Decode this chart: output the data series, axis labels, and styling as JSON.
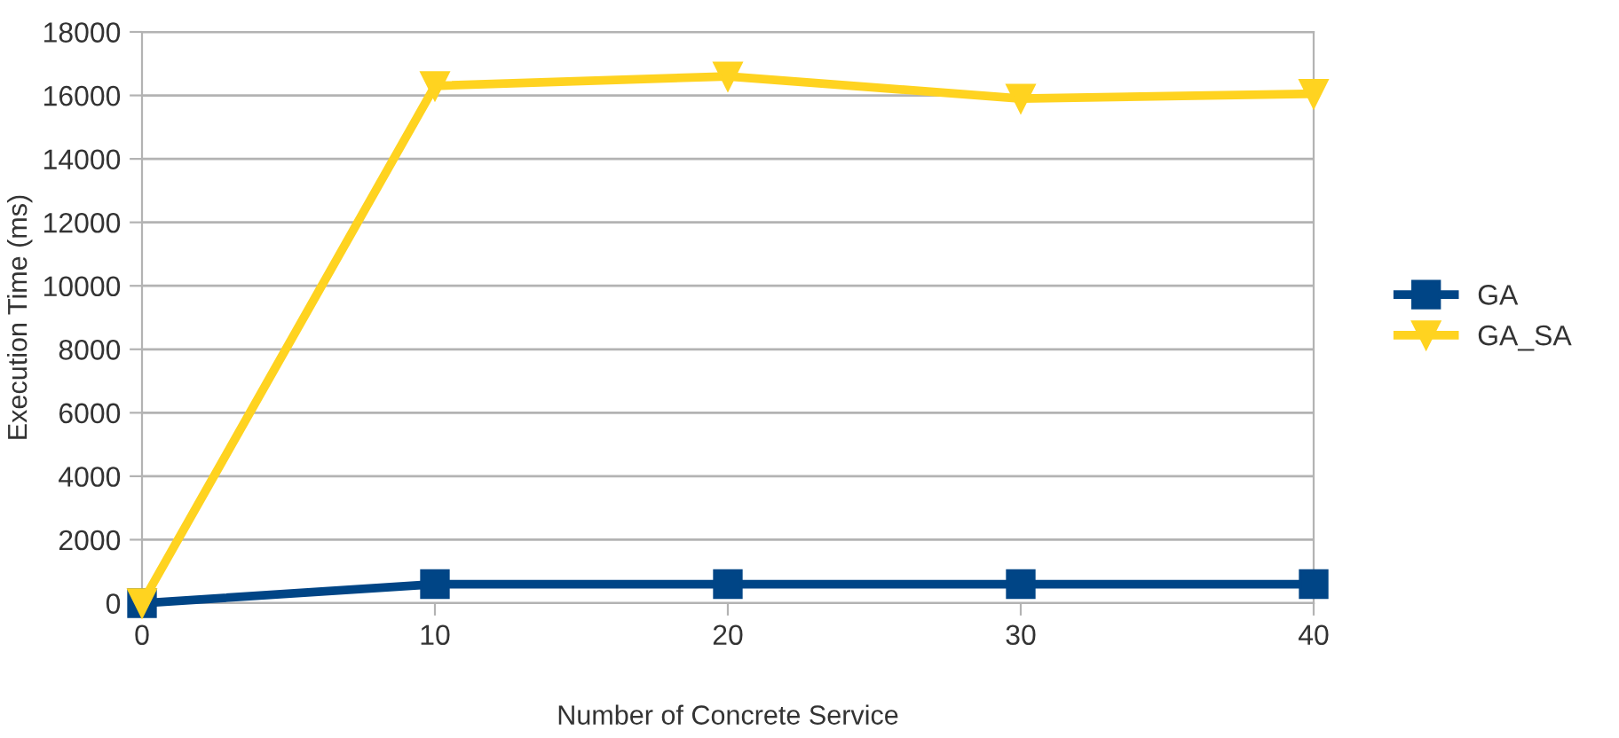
{
  "chart_data": {
    "type": "line",
    "xlabel": "Number of Concrete Service",
    "ylabel": "Execution Time (ms)",
    "x": [
      0,
      10,
      20,
      30,
      40
    ],
    "series": [
      {
        "name": "GA",
        "color": "#004586",
        "marker": "square",
        "values": [
          0,
          600,
          600,
          600,
          600
        ]
      },
      {
        "name": "GA_SA",
        "color": "#ffd320",
        "marker": "triangle",
        "values": [
          0,
          16300,
          16600,
          15900,
          16050
        ]
      }
    ],
    "xlim": [
      0,
      40
    ],
    "xticks": [
      0,
      10,
      20,
      30,
      40
    ],
    "ylim": [
      0,
      18000
    ],
    "yticks": [
      0,
      2000,
      4000,
      6000,
      8000,
      10000,
      12000,
      14000,
      16000,
      18000
    ],
    "grid": "y",
    "legend": "right",
    "line_style": "solid"
  }
}
